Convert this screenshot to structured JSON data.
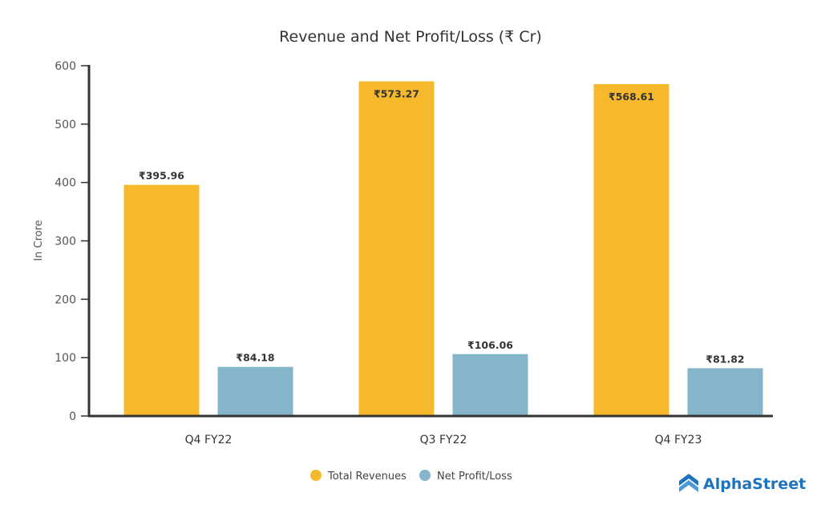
{
  "chart_data": {
    "type": "bar",
    "title": "Revenue and Net Profit/Loss (₹ Cr)",
    "xlabel": "",
    "ylabel": "In Crore",
    "ylim": [
      0,
      600
    ],
    "yticks": [
      0,
      100,
      200,
      300,
      400,
      500,
      600
    ],
    "grid": false,
    "categories": [
      "Q4 FY22",
      "Q3 FY22",
      "Q4 FY23"
    ],
    "series": [
      {
        "name": "Total Revenues",
        "color": "#f6b92b",
        "values": [
          395.96,
          573.27,
          568.61
        ],
        "labels": [
          "₹395.96",
          "₹573.27",
          "₹568.61"
        ]
      },
      {
        "name": "Net Profit/Loss",
        "color": "#84b5cb",
        "values": [
          84.18,
          106.06,
          81.82
        ],
        "labels": [
          "₹84.18",
          "₹106.06",
          "₹81.82"
        ]
      }
    ],
    "legend_position": "bottom-center"
  },
  "branding": {
    "logo_text": "AlphaStreet",
    "logo_color": "#1e73be"
  }
}
